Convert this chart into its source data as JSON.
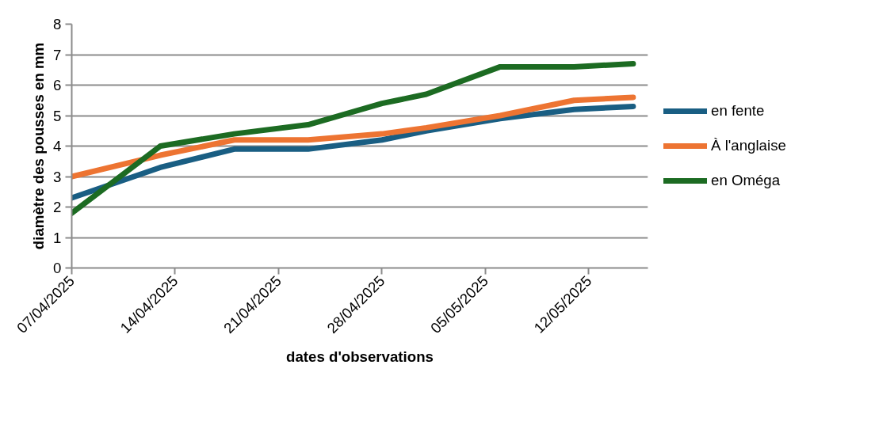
{
  "chart_data": {
    "type": "line",
    "xlabel": "dates d'observations",
    "ylabel": "diamètre des pousses en mm",
    "x": [
      "2025-04-07",
      "2025-04-13",
      "2025-04-18",
      "2025-04-23",
      "2025-04-28",
      "2025-05-01",
      "2025-05-06",
      "2025-05-11",
      "2025-05-15"
    ],
    "series": [
      {
        "name": "en fente",
        "color": "#195e83",
        "values": [
          2.3,
          3.3,
          3.9,
          3.9,
          4.2,
          4.5,
          4.9,
          5.2,
          5.3
        ]
      },
      {
        "name": "À l'anglaise",
        "color": "#ed7432",
        "values": [
          3.0,
          3.7,
          4.2,
          4.2,
          4.4,
          4.6,
          5.0,
          5.5,
          5.6
        ]
      },
      {
        "name": "en Oméga",
        "color": "#1c6b22",
        "values": [
          1.8,
          4.0,
          4.4,
          4.7,
          5.4,
          5.7,
          6.6,
          6.6,
          6.7
        ]
      }
    ],
    "xlim": [
      "2025-04-07",
      "2025-05-16"
    ],
    "xticks": [
      {
        "value": "2025-04-07",
        "label": "07/04/2025"
      },
      {
        "value": "2025-04-14",
        "label": "14/04/2025"
      },
      {
        "value": "2025-04-21",
        "label": "21/04/2025"
      },
      {
        "value": "2025-04-28",
        "label": "28/04/2025"
      },
      {
        "value": "2025-05-05",
        "label": "05/05/2025"
      },
      {
        "value": "2025-05-12",
        "label": "12/05/2025"
      }
    ],
    "ylim": [
      0,
      8
    ],
    "yticks": [
      0,
      1,
      2,
      3,
      4,
      5,
      6,
      7,
      8
    ],
    "grid": "y",
    "legend": "right",
    "marker": "none",
    "line_style": "solid"
  }
}
